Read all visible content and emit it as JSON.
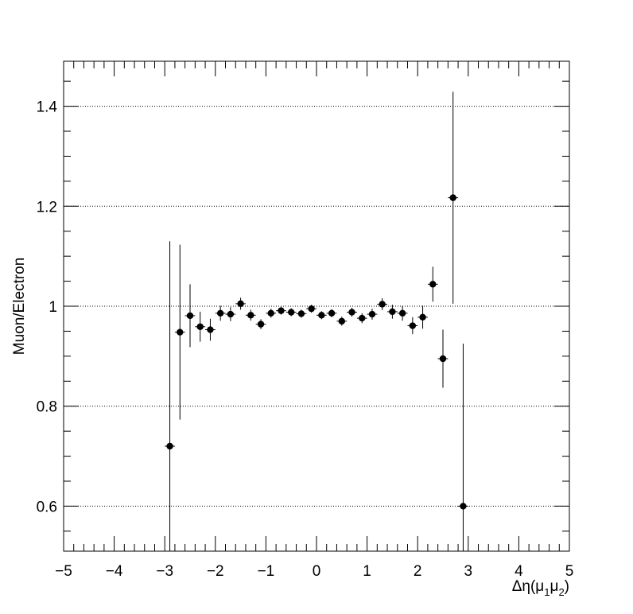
{
  "chart_data": {
    "type": "scatter",
    "title": "",
    "xlabel": "Δη(μ1μ2)",
    "ylabel": "Muon/Electron",
    "xlim": [
      -5,
      5
    ],
    "ylim": [
      0.51,
      1.49
    ],
    "x_ticks": [
      -5,
      -4,
      -3,
      -2,
      -1,
      0,
      1,
      2,
      3,
      4,
      5
    ],
    "x_tick_labels": [
      "−5",
      "−4",
      "−3",
      "−2",
      "−1",
      "0",
      "1",
      "2",
      "3",
      "4",
      "5"
    ],
    "y_ticks": [
      0.6,
      0.8,
      1.0,
      1.2,
      1.4
    ],
    "y_tick_labels": [
      "0.6",
      "0.8",
      "1",
      "1.2",
      "1.4"
    ],
    "grid": "horizontal dotted at major y ticks",
    "legend": "none",
    "marker_color": "#000000",
    "series": [
      {
        "x_halfwidth": 0.1,
        "points": [
          {
            "x": -2.9,
            "y": 0.72,
            "err": 0.41
          },
          {
            "x": -2.7,
            "y": 0.948,
            "err": 0.175
          },
          {
            "x": -2.5,
            "y": 0.981,
            "err": 0.063
          },
          {
            "x": -2.3,
            "y": 0.959,
            "err": 0.03
          },
          {
            "x": -2.1,
            "y": 0.953,
            "err": 0.022
          },
          {
            "x": -1.9,
            "y": 0.986,
            "err": 0.015
          },
          {
            "x": -1.7,
            "y": 0.984,
            "err": 0.014
          },
          {
            "x": -1.5,
            "y": 1.005,
            "err": 0.012
          },
          {
            "x": -1.3,
            "y": 0.982,
            "err": 0.011
          },
          {
            "x": -1.1,
            "y": 0.964,
            "err": 0.01
          },
          {
            "x": -0.9,
            "y": 0.986,
            "err": 0.009
          },
          {
            "x": -0.7,
            "y": 0.991,
            "err": 0.008
          },
          {
            "x": -0.5,
            "y": 0.988,
            "err": 0.008
          },
          {
            "x": -0.3,
            "y": 0.985,
            "err": 0.008
          },
          {
            "x": -0.1,
            "y": 0.995,
            "err": 0.008
          },
          {
            "x": 0.1,
            "y": 0.982,
            "err": 0.008
          },
          {
            "x": 0.3,
            "y": 0.986,
            "err": 0.008
          },
          {
            "x": 0.5,
            "y": 0.97,
            "err": 0.009
          },
          {
            "x": 0.7,
            "y": 0.988,
            "err": 0.009
          },
          {
            "x": 0.9,
            "y": 0.976,
            "err": 0.01
          },
          {
            "x": 1.1,
            "y": 0.984,
            "err": 0.011
          },
          {
            "x": 1.3,
            "y": 1.004,
            "err": 0.012
          },
          {
            "x": 1.5,
            "y": 0.989,
            "err": 0.014
          },
          {
            "x": 1.7,
            "y": 0.986,
            "err": 0.015
          },
          {
            "x": 1.9,
            "y": 0.961,
            "err": 0.017
          },
          {
            "x": 2.1,
            "y": 0.978,
            "err": 0.023
          },
          {
            "x": 2.3,
            "y": 1.044,
            "err": 0.035
          },
          {
            "x": 2.5,
            "y": 0.895,
            "err": 0.058
          },
          {
            "x": 2.7,
            "y": 1.217,
            "err": 0.212
          },
          {
            "x": 2.9,
            "y": 0.6,
            "err": 0.325
          }
        ]
      }
    ]
  }
}
